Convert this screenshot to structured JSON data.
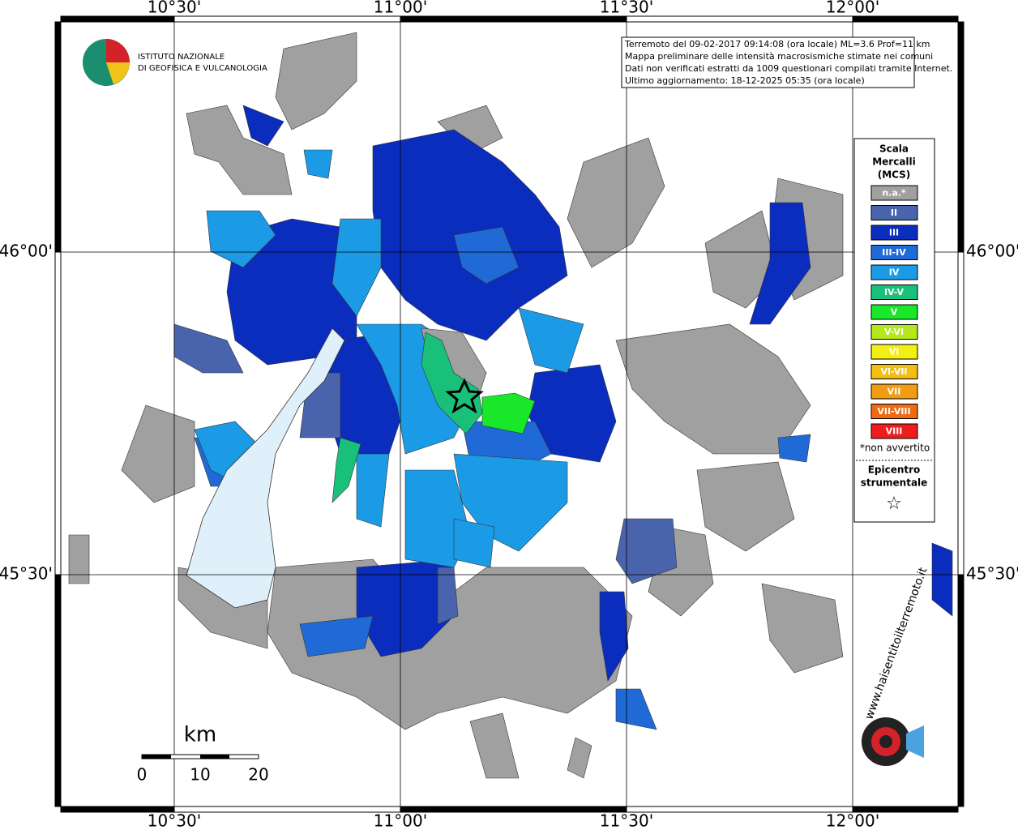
{
  "map": {
    "lon_labels": [
      "10°30'",
      "11°00'",
      "11°30'",
      "12°00'"
    ],
    "lat_labels": [
      "46°00'",
      "45°30'"
    ],
    "info_lines": [
      "Terremoto del 09-02-2017 09:14:08 (ora locale) ML=3.6 Prof=11 km",
      "Mappa preliminare delle intensità macrosismiche stimate nei comuni",
      "Dati non verificati estratti da 1009 questionari compilati tramite Internet.",
      "Ultimo aggiornamento: 18-12-2025 05:35 (ora locale)"
    ],
    "institute": [
      "ISTITUTO NAZIONALE",
      "DI GEOFISICA E VULCANOLOGIA"
    ],
    "legend": {
      "title": [
        "Scala",
        "Mercalli",
        "(MCS)"
      ],
      "items": [
        {
          "label": "n.a.*",
          "color": "#a0a0a0"
        },
        {
          "label": "II",
          "color": "#4a63ad"
        },
        {
          "label": "III",
          "color": "#0a2dbd"
        },
        {
          "label": "III-IV",
          "color": "#1f6ad6"
        },
        {
          "label": "IV",
          "color": "#1b9be6"
        },
        {
          "label": "IV-V",
          "color": "#19c07a"
        },
        {
          "label": "V",
          "color": "#19e82a"
        },
        {
          "label": "V-VI",
          "color": "#b4e81a"
        },
        {
          "label": "VI",
          "color": "#f2ef12"
        },
        {
          "label": "VI-VII",
          "color": "#f2be12"
        },
        {
          "label": "VII",
          "color": "#f29c12"
        },
        {
          "label": "VII-VIII",
          "color": "#f06a12"
        },
        {
          "label": "VIII",
          "color": "#ee1c1c"
        }
      ],
      "note": "*non avvertito",
      "epicenter": [
        "Epicentro",
        "strumentale"
      ],
      "star": "☆"
    },
    "scale": {
      "unit": "km",
      "ticks": [
        0,
        10,
        20
      ]
    },
    "site": "www.haisentitoilterremoto.it"
  }
}
